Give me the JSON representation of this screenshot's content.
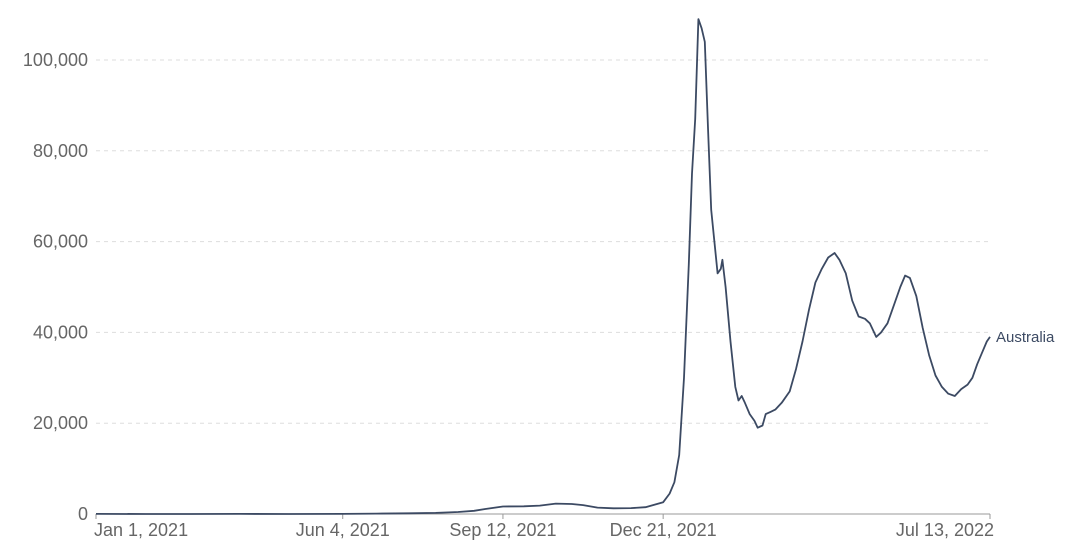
{
  "chart_data": {
    "type": "line",
    "title": "",
    "xlabel": "",
    "ylabel": "",
    "x_range": [
      "2021-01-01",
      "2022-07-13"
    ],
    "ylim": [
      0,
      110000
    ],
    "y_ticks": [
      0,
      20000,
      40000,
      60000,
      80000,
      100000
    ],
    "y_tick_labels": [
      "0",
      "20,000",
      "40,000",
      "60,000",
      "80,000",
      "100,000"
    ],
    "x_ticks": [
      "2021-01-01",
      "2021-06-04",
      "2021-09-12",
      "2021-12-21",
      "2022-07-13"
    ],
    "x_tick_labels": [
      "Jan 1, 2021",
      "Jun 4, 2021",
      "Sep 12, 2021",
      "Dec 21, 2021",
      "Jul 13, 2022"
    ],
    "grid": true,
    "legend": "end-of-line label",
    "series": [
      {
        "name": "Australia",
        "color": "#3c4a63",
        "points": [
          [
            "2021-01-01",
            15
          ],
          [
            "2021-02-01",
            8
          ],
          [
            "2021-03-01",
            10
          ],
          [
            "2021-04-01",
            12
          ],
          [
            "2021-05-01",
            10
          ],
          [
            "2021-06-04",
            20
          ],
          [
            "2021-06-25",
            80
          ],
          [
            "2021-07-15",
            150
          ],
          [
            "2021-08-01",
            250
          ],
          [
            "2021-08-15",
            450
          ],
          [
            "2021-08-25",
            700
          ],
          [
            "2021-09-01",
            1100
          ],
          [
            "2021-09-12",
            1650
          ],
          [
            "2021-09-25",
            1700
          ],
          [
            "2021-10-05",
            1850
          ],
          [
            "2021-10-15",
            2300
          ],
          [
            "2021-10-25",
            2200
          ],
          [
            "2021-11-01",
            1950
          ],
          [
            "2021-11-10",
            1400
          ],
          [
            "2021-11-20",
            1250
          ],
          [
            "2021-12-01",
            1300
          ],
          [
            "2021-12-10",
            1500
          ],
          [
            "2021-12-21",
            2600
          ],
          [
            "2021-12-25",
            4500
          ],
          [
            "2021-12-28",
            7000
          ],
          [
            "2021-12-31",
            13000
          ],
          [
            "2022-01-03",
            30000
          ],
          [
            "2022-01-06",
            55000
          ],
          [
            "2022-01-08",
            75000
          ],
          [
            "2022-01-10",
            87000
          ],
          [
            "2022-01-12",
            109000
          ],
          [
            "2022-01-14",
            107000
          ],
          [
            "2022-01-16",
            104000
          ],
          [
            "2022-01-18",
            85000
          ],
          [
            "2022-01-20",
            67000
          ],
          [
            "2022-01-22",
            60000
          ],
          [
            "2022-01-24",
            53000
          ],
          [
            "2022-01-26",
            54000
          ],
          [
            "2022-01-27",
            56000
          ],
          [
            "2022-01-29",
            50000
          ],
          [
            "2022-02-01",
            38000
          ],
          [
            "2022-02-04",
            28000
          ],
          [
            "2022-02-06",
            25000
          ],
          [
            "2022-02-08",
            26000
          ],
          [
            "2022-02-10",
            24500
          ],
          [
            "2022-02-13",
            22000
          ],
          [
            "2022-02-16",
            20500
          ],
          [
            "2022-02-18",
            19000
          ],
          [
            "2022-02-21",
            19500
          ],
          [
            "2022-02-23",
            22000
          ],
          [
            "2022-02-26",
            22500
          ],
          [
            "2022-03-01",
            23000
          ],
          [
            "2022-03-05",
            24500
          ],
          [
            "2022-03-10",
            27000
          ],
          [
            "2022-03-14",
            32000
          ],
          [
            "2022-03-18",
            38000
          ],
          [
            "2022-03-22",
            45000
          ],
          [
            "2022-03-26",
            51000
          ],
          [
            "2022-03-30",
            54000
          ],
          [
            "2022-04-03",
            56500
          ],
          [
            "2022-04-07",
            57500
          ],
          [
            "2022-04-10",
            56000
          ],
          [
            "2022-04-14",
            53000
          ],
          [
            "2022-04-18",
            47000
          ],
          [
            "2022-04-22",
            43500
          ],
          [
            "2022-04-26",
            43000
          ],
          [
            "2022-04-29",
            42000
          ],
          [
            "2022-05-03",
            39000
          ],
          [
            "2022-05-06",
            40000
          ],
          [
            "2022-05-10",
            42000
          ],
          [
            "2022-05-14",
            46000
          ],
          [
            "2022-05-18",
            50000
          ],
          [
            "2022-05-21",
            52500
          ],
          [
            "2022-05-24",
            52000
          ],
          [
            "2022-05-28",
            48000
          ],
          [
            "2022-06-01",
            41000
          ],
          [
            "2022-06-05",
            35000
          ],
          [
            "2022-06-09",
            30500
          ],
          [
            "2022-06-13",
            28000
          ],
          [
            "2022-06-17",
            26500
          ],
          [
            "2022-06-21",
            26000
          ],
          [
            "2022-06-25",
            27500
          ],
          [
            "2022-06-29",
            28500
          ],
          [
            "2022-07-02",
            30000
          ],
          [
            "2022-07-05",
            33000
          ],
          [
            "2022-07-08",
            35500
          ],
          [
            "2022-07-11",
            38000
          ],
          [
            "2022-07-13",
            39000
          ]
        ]
      }
    ]
  }
}
